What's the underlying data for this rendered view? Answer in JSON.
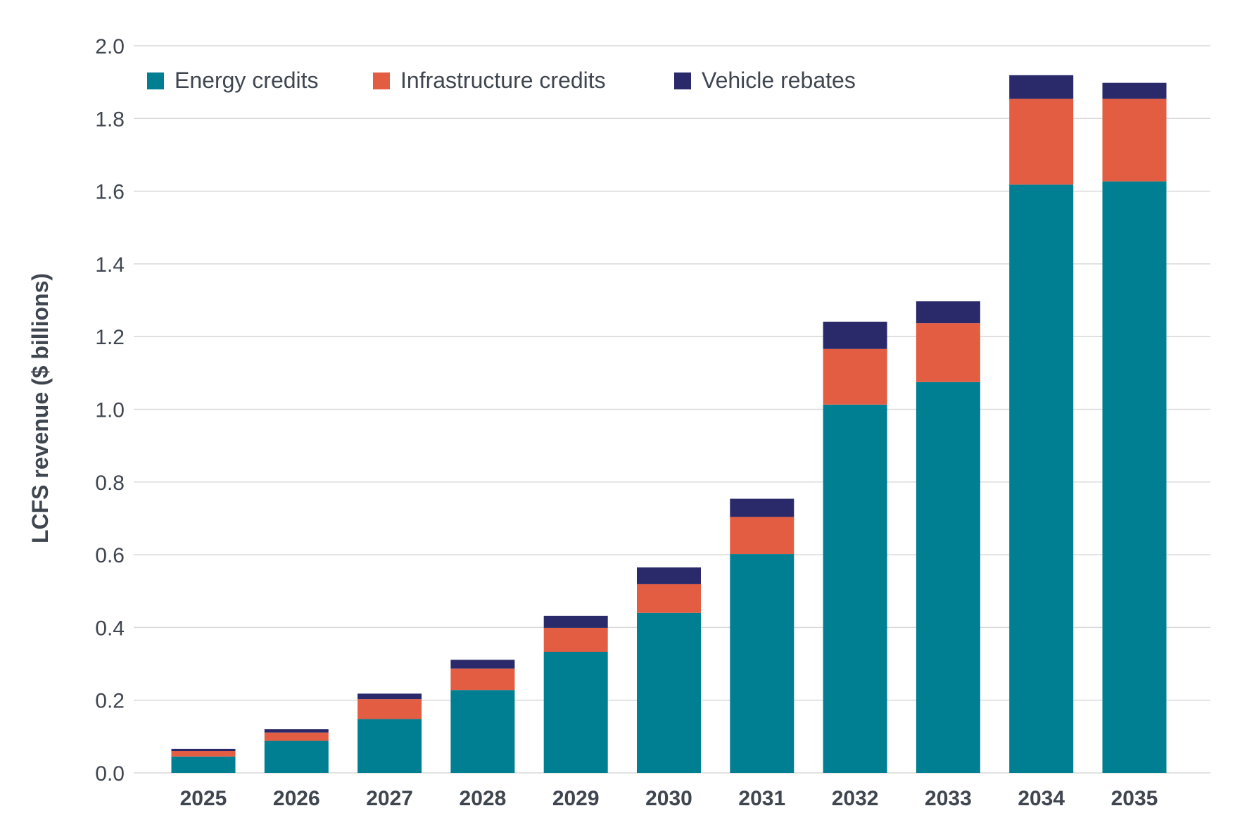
{
  "chart_data": {
    "type": "bar",
    "stacked": true,
    "title": "",
    "xlabel": "",
    "ylabel": "LCFS revenue ($ billions)",
    "ylim": [
      0,
      2.0
    ],
    "yticks": [
      "0.0",
      "0.2",
      "0.4",
      "0.6",
      "0.8",
      "1.0",
      "1.2",
      "1.4",
      "1.6",
      "1.8",
      "2.0"
    ],
    "ytick_values": [
      0,
      0.2,
      0.4,
      0.6,
      0.8,
      1.0,
      1.2,
      1.4,
      1.6,
      1.8,
      2.0
    ],
    "grid": true,
    "legend_position": "top-left",
    "categories": [
      "2025",
      "2026",
      "2027",
      "2028",
      "2029",
      "2030",
      "2031",
      "2032",
      "2033",
      "2034",
      "2035"
    ],
    "series": [
      {
        "name": "Energy credits",
        "color": "#007F93",
        "values": [
          0.045,
          0.088,
          0.148,
          0.228,
          0.333,
          0.44,
          0.602,
          1.013,
          1.075,
          1.618,
          1.627
        ]
      },
      {
        "name": "Infrastructure credits",
        "color": "#E35D43",
        "values": [
          0.015,
          0.023,
          0.055,
          0.059,
          0.066,
          0.079,
          0.102,
          0.153,
          0.162,
          0.236,
          0.227
        ]
      },
      {
        "name": "Vehicle rebates",
        "color": "#2A2A6A",
        "values": [
          0.006,
          0.009,
          0.015,
          0.024,
          0.033,
          0.046,
          0.05,
          0.075,
          0.06,
          0.065,
          0.044
        ]
      }
    ]
  }
}
